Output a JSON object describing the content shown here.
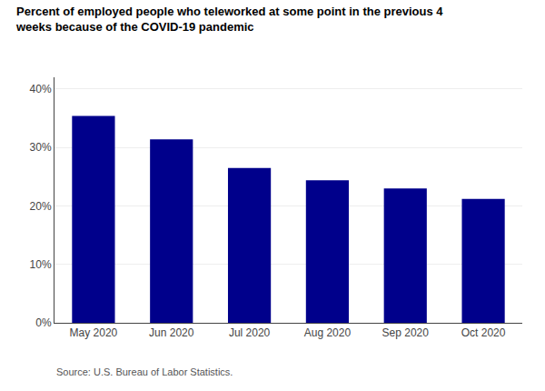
{
  "chart_data": {
    "type": "bar",
    "title": "Percent of employed people who teleworked at some point in the previous 4\nweeks because of the COVID-19 pandemic",
    "categories": [
      "May 2020",
      "Jun 2020",
      "Jul 2020",
      "Aug 2020",
      "Sep 2020",
      "Oct 2020"
    ],
    "values": [
      35.4,
      31.4,
      26.5,
      24.4,
      23.0,
      21.2
    ],
    "color": "#00008B",
    "ylim": [
      0,
      42
    ],
    "yticks": [
      {
        "value": 0,
        "label": "0%"
      },
      {
        "value": 10,
        "label": "10%"
      },
      {
        "value": 20,
        "label": "20%"
      },
      {
        "value": 30,
        "label": "30%"
      },
      {
        "value": 40,
        "label": "40%"
      }
    ],
    "grid": true,
    "annotations": [
      "Source: U.S. Bureau of Labor Statistics."
    ]
  }
}
